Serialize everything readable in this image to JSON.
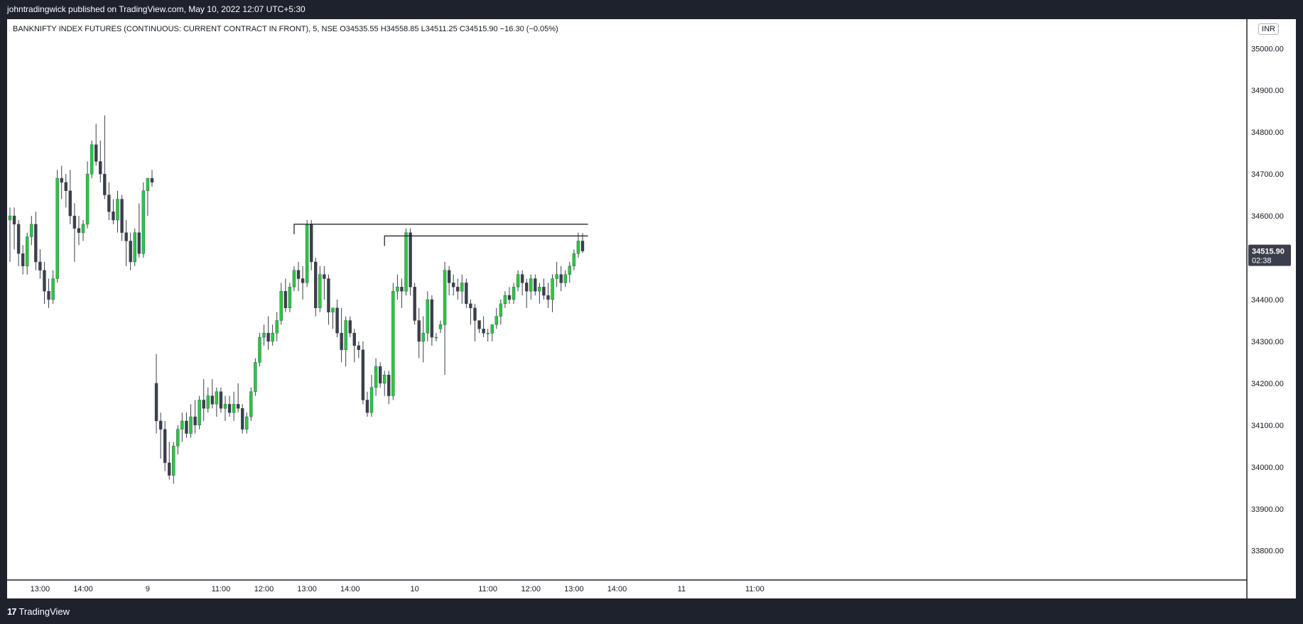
{
  "header": {
    "attribution": "johntradingwick published on TradingView.com, May 10, 2022 12:07 UTC+5:30"
  },
  "legend": {
    "symbol": "BANKNIFTY INDEX FUTURES (CONTINUOUS: CURRENT CONTRACT IN FRONT), 5, NSE",
    "open": "O34535.55",
    "high": "H34558.85",
    "low": "L34511.25",
    "close": "C34515.90",
    "change": "−16.30 (−0.05%)"
  },
  "currency_button": "INR",
  "price_badge": {
    "price": "34515.90",
    "countdown": "02:38"
  },
  "footer": {
    "logo": "17",
    "brand": "TradingView"
  },
  "colors": {
    "up": "#27c93f",
    "down": "#3a3f4b",
    "wick": "#3a3f4b",
    "badge": "#3a3f4b",
    "frame": "#1e222d"
  },
  "chart_data": {
    "type": "candlestick",
    "symbol": "BANKNIFTY",
    "interval_minutes": 5,
    "ylim": [
      33730,
      35070
    ],
    "yticks": [
      35000,
      34900,
      34800,
      34700,
      34600,
      34500,
      34400,
      34300,
      34200,
      34100,
      34000,
      33900,
      33800
    ],
    "ytick_labels": [
      "35000.00",
      "34900.00",
      "34800.00",
      "34700.00",
      "34600.00",
      "34500.00",
      "34400.00",
      "34300.00",
      "34200.00",
      "34100.00",
      "34000.00",
      "33900.00",
      "33800.00"
    ],
    "xtick_labels": [
      "13:00",
      "14:00",
      "9",
      "11:00",
      "12:00",
      "13:00",
      "14:00",
      "10",
      "11:00",
      "12:00",
      "13:00",
      "14:00",
      "11",
      "11:00"
    ],
    "xtick_bar_index": [
      7,
      17,
      32,
      49,
      59,
      69,
      79,
      94,
      111,
      121,
      131,
      141,
      156,
      173
    ],
    "horizontal_lines": [
      {
        "price": 34580,
        "from_bar": 66,
        "to_bar": 134
      },
      {
        "price": 34552,
        "from_bar": 87,
        "to_bar": 134
      }
    ],
    "last_price": 34515.9,
    "candles": [
      [
        34590,
        34620,
        34490,
        34600
      ],
      [
        34600,
        34620,
        34520,
        34580
      ],
      [
        34580,
        34590,
        34480,
        34510
      ],
      [
        34510,
        34530,
        34460,
        34480
      ],
      [
        34480,
        34560,
        34460,
        34550
      ],
      [
        34550,
        34600,
        34530,
        34580
      ],
      [
        34580,
        34610,
        34470,
        34490
      ],
      [
        34490,
        34520,
        34450,
        34470
      ],
      [
        34470,
        34490,
        34390,
        34420
      ],
      [
        34420,
        34450,
        34380,
        34400
      ],
      [
        34400,
        34470,
        34390,
        34450
      ],
      [
        34450,
        34710,
        34440,
        34690
      ],
      [
        34690,
        34720,
        34640,
        34680
      ],
      [
        34680,
        34700,
        34620,
        34660
      ],
      [
        34660,
        34710,
        34580,
        34600
      ],
      [
        34600,
        34630,
        34490,
        34570
      ],
      [
        34570,
        34600,
        34530,
        34560
      ],
      [
        34560,
        34590,
        34540,
        34580
      ],
      [
        34580,
        34730,
        34570,
        34700
      ],
      [
        34700,
        34780,
        34690,
        34770
      ],
      [
        34770,
        34820,
        34720,
        34730
      ],
      [
        34730,
        34780,
        34680,
        34700
      ],
      [
        34700,
        34840,
        34640,
        34650
      ],
      [
        34650,
        34680,
        34590,
        34610
      ],
      [
        34610,
        34640,
        34580,
        34590
      ],
      [
        34590,
        34660,
        34560,
        34640
      ],
      [
        34640,
        34650,
        34540,
        34560
      ],
      [
        34560,
        34590,
        34480,
        34540
      ],
      [
        34540,
        34560,
        34470,
        34490
      ],
      [
        34490,
        34570,
        34480,
        34560
      ],
      [
        34560,
        34630,
        34500,
        34510
      ],
      [
        34510,
        34680,
        34500,
        34660
      ],
      [
        34660,
        34690,
        34600,
        34690
      ],
      [
        34690,
        34710,
        34670,
        34680
      ],
      [
        34200,
        34270,
        34080,
        34110
      ],
      [
        34110,
        34130,
        34020,
        34090
      ],
      [
        34090,
        34110,
        33990,
        34010
      ],
      [
        34010,
        34060,
        33970,
        33980
      ],
      [
        33980,
        34060,
        33960,
        34050
      ],
      [
        34050,
        34100,
        34030,
        34090
      ],
      [
        34090,
        34130,
        34060,
        34110
      ],
      [
        34110,
        34130,
        34070,
        34080
      ],
      [
        34080,
        34150,
        34070,
        34120
      ],
      [
        34120,
        34160,
        34080,
        34100
      ],
      [
        34100,
        34170,
        34090,
        34160
      ],
      [
        34160,
        34210,
        34110,
        34140
      ],
      [
        34140,
        34190,
        34130,
        34170
      ],
      [
        34170,
        34210,
        34140,
        34150
      ],
      [
        34150,
        34190,
        34120,
        34180
      ],
      [
        34180,
        34190,
        34130,
        34140
      ],
      [
        34140,
        34170,
        34110,
        34150
      ],
      [
        34150,
        34170,
        34120,
        34130
      ],
      [
        34130,
        34180,
        34110,
        34150
      ],
      [
        34150,
        34200,
        34130,
        34140
      ],
      [
        34140,
        34150,
        34080,
        34090
      ],
      [
        34090,
        34130,
        34080,
        34120
      ],
      [
        34120,
        34190,
        34110,
        34180
      ],
      [
        34180,
        34260,
        34170,
        34250
      ],
      [
        34250,
        34320,
        34240,
        34310
      ],
      [
        34310,
        34340,
        34290,
        34320
      ],
      [
        34320,
        34360,
        34280,
        34300
      ],
      [
        34300,
        34340,
        34290,
        34320
      ],
      [
        34320,
        34370,
        34300,
        34350
      ],
      [
        34350,
        34440,
        34340,
        34420
      ],
      [
        34420,
        34450,
        34370,
        34380
      ],
      [
        34380,
        34440,
        34370,
        34430
      ],
      [
        34430,
        34480,
        34420,
        34470
      ],
      [
        34470,
        34490,
        34420,
        34450
      ],
      [
        34450,
        34480,
        34400,
        34440
      ],
      [
        34440,
        34590,
        34430,
        34580
      ],
      [
        34580,
        34590,
        34470,
        34490
      ],
      [
        34490,
        34500,
        34360,
        34380
      ],
      [
        34380,
        34480,
        34370,
        34460
      ],
      [
        34460,
        34480,
        34400,
        34450
      ],
      [
        34450,
        34460,
        34340,
        34370
      ],
      [
        34370,
        34380,
        34330,
        34380
      ],
      [
        34380,
        34400,
        34310,
        34320
      ],
      [
        34320,
        34380,
        34250,
        34280
      ],
      [
        34280,
        34360,
        34240,
        34350
      ],
      [
        34350,
        34360,
        34310,
        34320
      ],
      [
        34320,
        34330,
        34250,
        34290
      ],
      [
        34290,
        34300,
        34260,
        34280
      ],
      [
        34280,
        34300,
        34150,
        34160
      ],
      [
        34160,
        34180,
        34120,
        34130
      ],
      [
        34130,
        34220,
        34120,
        34190
      ],
      [
        34190,
        34260,
        34170,
        34240
      ],
      [
        34240,
        34250,
        34190,
        34200
      ],
      [
        34200,
        34230,
        34170,
        34220
      ],
      [
        34220,
        34230,
        34150,
        34170
      ],
      [
        34170,
        34440,
        34160,
        34420
      ],
      [
        34420,
        34460,
        34400,
        34430
      ],
      [
        34430,
        34450,
        34380,
        34420
      ],
      [
        34420,
        34570,
        34410,
        34560
      ],
      [
        34560,
        34570,
        34410,
        34430
      ],
      [
        34430,
        34440,
        34340,
        34350
      ],
      [
        34350,
        34380,
        34260,
        34300
      ],
      [
        34300,
        34360,
        34250,
        34320
      ],
      [
        34320,
        34420,
        34300,
        34400
      ],
      [
        34400,
        34410,
        34290,
        34310
      ],
      [
        34310,
        34320,
        34300,
        34310
      ],
      [
        34330,
        34350,
        34320,
        34340
      ],
      [
        34340,
        34490,
        34220,
        34470
      ],
      [
        34470,
        34480,
        34410,
        34440
      ],
      [
        34440,
        34460,
        34410,
        34430
      ],
      [
        34430,
        34450,
        34400,
        34420
      ],
      [
        34420,
        34460,
        34390,
        34440
      ],
      [
        34440,
        34450,
        34380,
        34390
      ],
      [
        34390,
        34400,
        34340,
        34380
      ],
      [
        34380,
        34390,
        34300,
        34350
      ],
      [
        34350,
        34350,
        34320,
        34330
      ],
      [
        34330,
        34360,
        34310,
        34320
      ],
      [
        34320,
        34330,
        34300,
        34320
      ],
      [
        34320,
        34340,
        34300,
        34340
      ],
      [
        34340,
        34380,
        34330,
        34360
      ],
      [
        34360,
        34400,
        34340,
        34390
      ],
      [
        34390,
        34420,
        34380,
        34410
      ],
      [
        34410,
        34430,
        34390,
        34400
      ],
      [
        34400,
        34440,
        34390,
        34430
      ],
      [
        34430,
        34470,
        34420,
        34460
      ],
      [
        34460,
        34470,
        34410,
        34440
      ],
      [
        34440,
        34450,
        34380,
        34420
      ],
      [
        34420,
        34460,
        34400,
        34450
      ],
      [
        34450,
        34460,
        34410,
        34420
      ],
      [
        34420,
        34440,
        34390,
        34430
      ],
      [
        34430,
        34450,
        34400,
        34410
      ],
      [
        34410,
        34440,
        34380,
        34400
      ],
      [
        34400,
        34460,
        34370,
        34450
      ],
      [
        34450,
        34490,
        34430,
        34460
      ],
      [
        34460,
        34480,
        34420,
        34440
      ],
      [
        34440,
        34470,
        34430,
        34460
      ],
      [
        34460,
        34490,
        34440,
        34480
      ],
      [
        34480,
        34520,
        34470,
        34510
      ],
      [
        34510,
        34560,
        34500,
        34540
      ],
      [
        34540,
        34559,
        34511,
        34516
      ]
    ]
  }
}
